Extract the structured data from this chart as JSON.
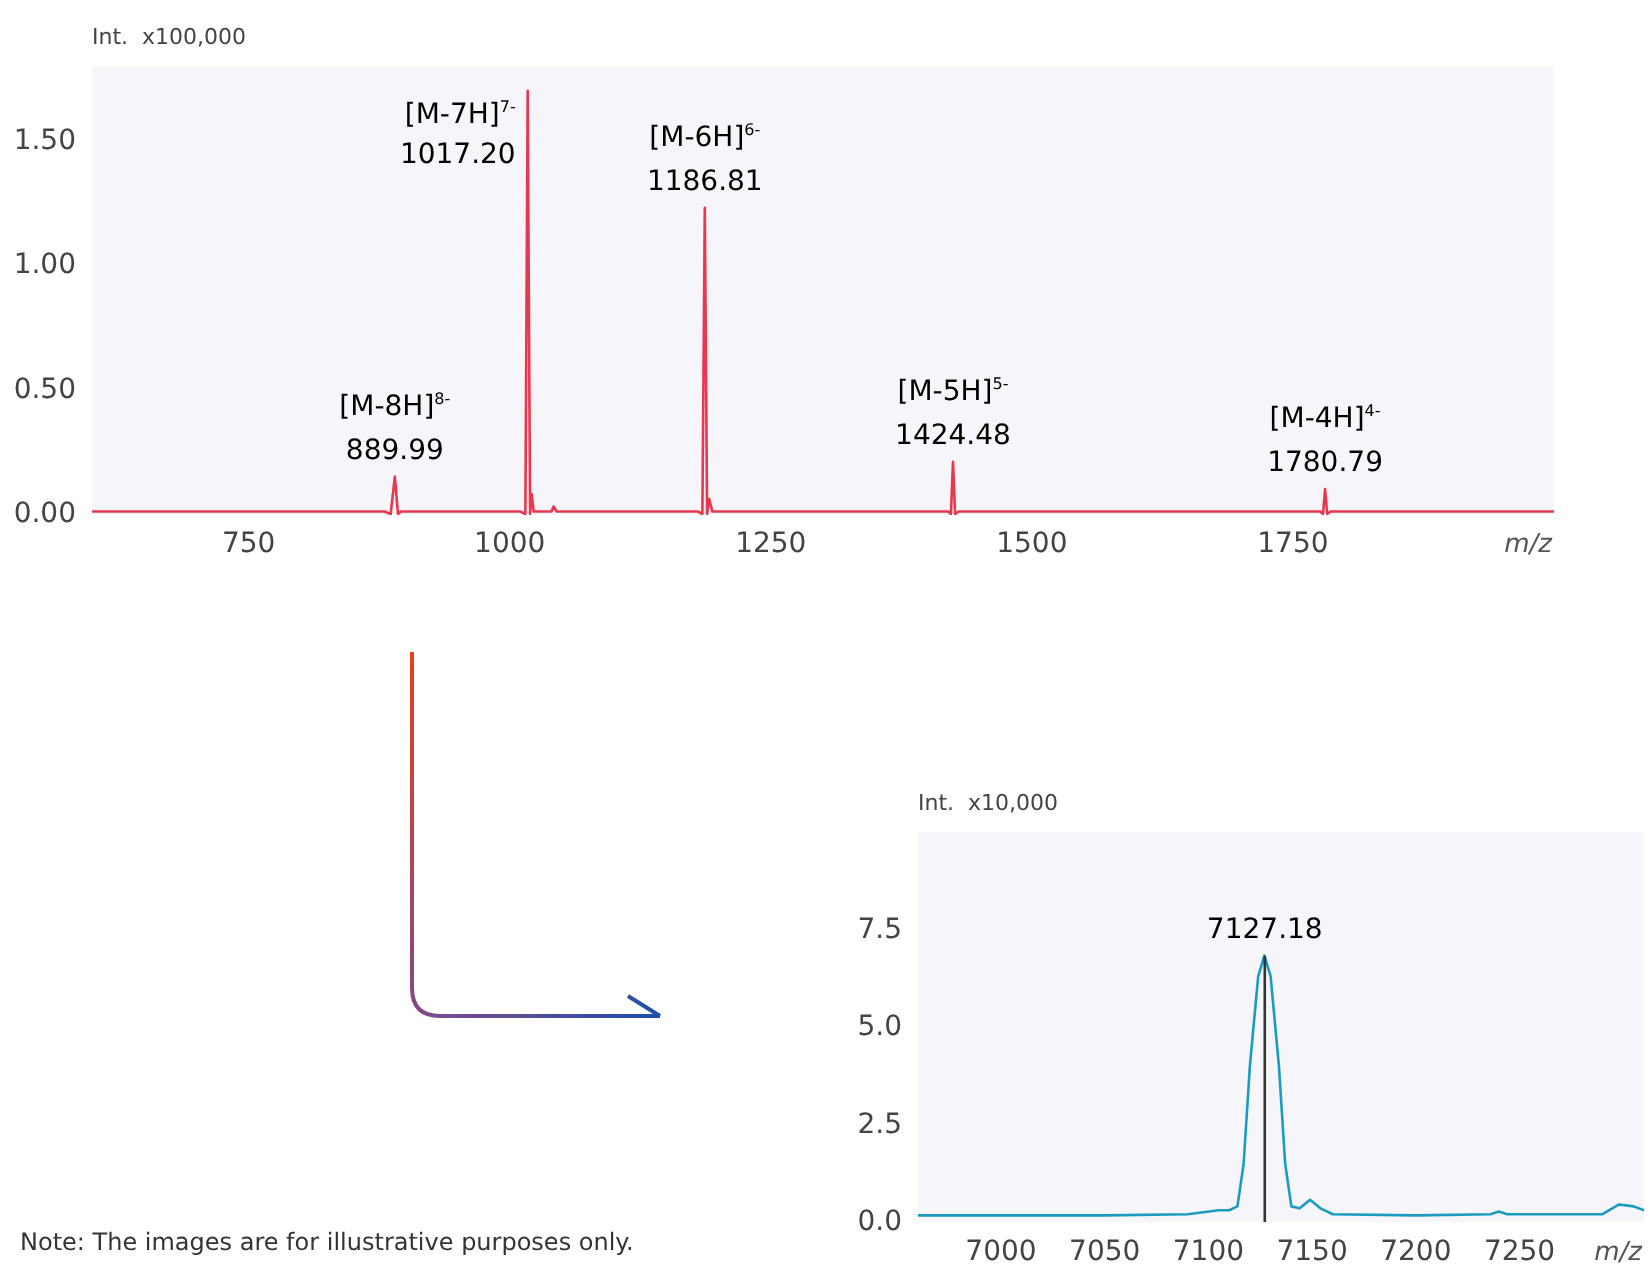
{
  "chart_data": [
    {
      "type": "line",
      "ylabel": "Int.  x100,000",
      "xlabel": "m/z",
      "xlim": [
        600,
        2000
      ],
      "ylim": [
        0,
        1.8
      ],
      "xticks": [
        750,
        1000,
        1250,
        1500,
        1750
      ],
      "yticks": [
        {
          "value": 0,
          "label": "0.00"
        },
        {
          "value": 0.5,
          "label": "0.50"
        },
        {
          "value": 1,
          "label": "1.00"
        },
        {
          "value": 1.5,
          "label": "1.50"
        }
      ],
      "marker": "none",
      "series": [
        {
          "color": "#e8384f",
          "x": [
            600,
            880,
            886,
            889.99,
            893,
            896,
            1010,
            1015,
            1017.2,
            1019.5,
            1021,
            1023,
            1040,
            1042,
            1045,
            1180,
            1184.5,
            1186.81,
            1189,
            1191,
            1194,
            1420,
            1422.5,
            1424.48,
            1426.5,
            1430,
            1776,
            1778.8,
            1780.79,
            1782.8,
            1786,
            1950,
            2000
          ],
          "values": [
            0.01,
            0.01,
            0.0,
            0.15,
            0.0,
            0.01,
            0.01,
            0.0,
            1.7,
            0.0,
            0.08,
            0.01,
            0.01,
            0.03,
            0.01,
            0.01,
            0.0,
            1.23,
            0.0,
            0.06,
            0.01,
            0.01,
            0.0,
            0.21,
            0.0,
            0.01,
            0.01,
            0.0,
            0.1,
            0.0,
            0.01,
            0.01,
            0.01
          ]
        }
      ],
      "annotations": [
        {
          "text": "[M-8H]$^{8-}$",
          "x": 889.99,
          "y": 0.15
        },
        {
          "text": "889.99",
          "x": 889.99,
          "y": 0.15
        },
        {
          "text": "[M-7H]$^{7-}$",
          "x": 1017.2,
          "y": 1.7
        },
        {
          "text": "1017.20",
          "x": 1017.2,
          "y": 1.7
        },
        {
          "text": "[M-6H]$^{6-}$",
          "x": 1186.81,
          "y": 1.23
        },
        {
          "text": "1186.81",
          "x": 1186.81,
          "y": 1.23
        },
        {
          "text": "[M-5H]$^{5-}$",
          "x": 1424.48,
          "y": 0.21
        },
        {
          "text": "1424.48",
          "x": 1424.48,
          "y": 0.21
        },
        {
          "text": "[M-4H]$^{4-}$",
          "x": 1780.79,
          "y": 0.1
        },
        {
          "text": "1780.79",
          "x": 1780.79,
          "y": 0.1
        }
      ]
    },
    {
      "type": "line",
      "ylabel": "Int.  x10,000",
      "xlabel": "m/z",
      "xlim": [
        6960,
        7310
      ],
      "ylim": [
        0,
        10
      ],
      "xticks": [
        7000,
        7050,
        7100,
        7150,
        7200,
        7250
      ],
      "yticks": [
        {
          "value": 0,
          "label": "0.0"
        },
        {
          "value": 2.5,
          "label": "2.5"
        },
        {
          "value": 5,
          "label": "5.0"
        },
        {
          "value": 7.5,
          "label": "7.5"
        }
      ],
      "marker": "none",
      "series": [
        {
          "color": "#1a9bbf",
          "x": [
            6960,
            7000,
            7050,
            7090,
            7105,
            7110,
            7114,
            7117,
            7120,
            7124,
            7127,
            7130,
            7134,
            7137,
            7140,
            7144,
            7149,
            7154,
            7160,
            7200,
            7236,
            7240,
            7244,
            7290,
            7298,
            7305,
            7310
          ],
          "values": [
            0.17,
            0.17,
            0.17,
            0.2,
            0.3,
            0.3,
            0.4,
            1.5,
            4.0,
            6.3,
            6.83,
            6.3,
            4.0,
            1.5,
            0.4,
            0.35,
            0.57,
            0.35,
            0.2,
            0.17,
            0.2,
            0.27,
            0.2,
            0.2,
            0.45,
            0.4,
            0.3
          ]
        },
        {
          "color": "#333333",
          "x": [
            7127.18,
            7127.18
          ],
          "values": [
            0,
            6.83
          ]
        }
      ],
      "annotations": [
        {
          "text": "7127.18",
          "x": 7127.18,
          "y": 6.83
        },
        "Note: The images are for illustrative purposes only."
      ]
    }
  ]
}
